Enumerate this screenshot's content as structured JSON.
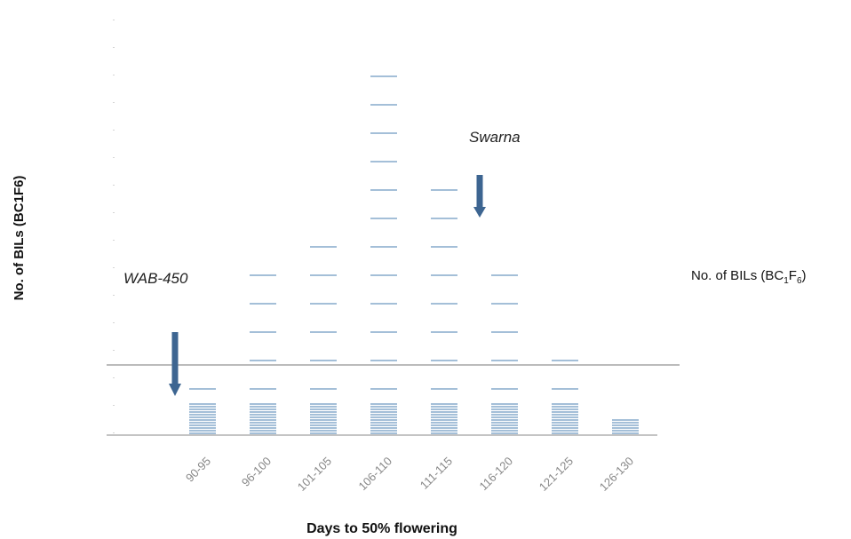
{
  "chart_data": {
    "type": "bar",
    "xlabel": "Days to 50% flowering",
    "ylabel": "No. of BILs (BC1F6)",
    "categories": [
      "90-95",
      "96-100",
      "101-105",
      "106-110",
      "111-115",
      "116-120",
      "121-125",
      "126-130"
    ],
    "values": [
      4,
      10,
      12,
      24,
      16,
      10,
      6,
      1
    ],
    "ylim": [
      0,
      24
    ],
    "grid": false,
    "legend": {
      "label": "No. of BILs (BC1F6)",
      "position": "right"
    },
    "annotations": [
      {
        "text": "WAB-450",
        "points_to": "90-95",
        "direction": "down"
      },
      {
        "text": "Swarna",
        "points_to": "111-115",
        "direction": "down"
      }
    ],
    "colors": {
      "bar": "#4a7fb0",
      "arrow": "#3d6591",
      "axis": "#777777"
    }
  }
}
